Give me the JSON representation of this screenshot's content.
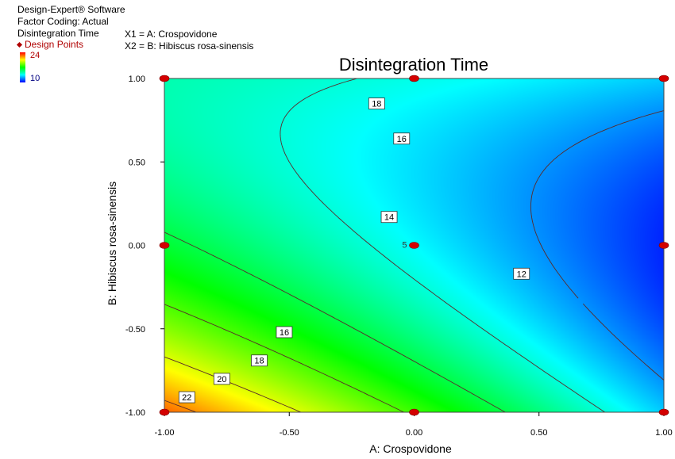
{
  "header": {
    "software": "Design-Expert® Software",
    "coding": "Factor Coding: Actual",
    "response": "Disintegration Time",
    "design_points": "Design Points",
    "legend_high": "24",
    "legend_low": "10",
    "x1_def": "X1 = A: Crospovidone",
    "x2_def": "X2 = B: Hibiscus rosa-sinensis"
  },
  "chart_data": {
    "type": "contour",
    "title": "Disintegration Time",
    "xlabel": "A: Crospovidone",
    "ylabel": "B: Hibiscus rosa-sinensis",
    "xlim": [
      -1,
      1
    ],
    "ylim": [
      -1,
      1
    ],
    "x_ticks": [
      "-1.00",
      "-0.50",
      "0.00",
      "0.50",
      "1.00"
    ],
    "y_ticks": [
      "1.00",
      "0.50",
      "0.00",
      "-0.50",
      "-1.00"
    ],
    "color_range": [
      10,
      24
    ],
    "colors": [
      "#0000ff",
      "#00ffff",
      "#00ff00",
      "#ffff00",
      "#ff0000"
    ],
    "design_points": [
      {
        "x": -1,
        "y": 1
      },
      {
        "x": 0,
        "y": 1
      },
      {
        "x": 1,
        "y": 1
      },
      {
        "x": -1,
        "y": 0
      },
      {
        "x": 0,
        "y": 0,
        "label": "5"
      },
      {
        "x": 1,
        "y": 0
      },
      {
        "x": -1,
        "y": -1
      },
      {
        "x": 0,
        "y": -1
      },
      {
        "x": 1,
        "y": -1
      }
    ],
    "contour_levels": [
      12,
      14,
      16,
      18,
      20,
      22
    ],
    "contour_labels": [
      {
        "text": "18",
        "x": -0.15,
        "y": 0.85
      },
      {
        "text": "16",
        "x": -0.05,
        "y": 0.64
      },
      {
        "text": "14",
        "x": -0.1,
        "y": 0.17
      },
      {
        "text": "12",
        "x": 0.43,
        "y": -0.17
      },
      {
        "text": "16",
        "x": -0.52,
        "y": -0.52
      },
      {
        "text": "18",
        "x": -0.62,
        "y": -0.69
      },
      {
        "text": "20",
        "x": -0.77,
        "y": -0.8
      },
      {
        "text": "22",
        "x": -0.91,
        "y": -0.91
      }
    ]
  }
}
